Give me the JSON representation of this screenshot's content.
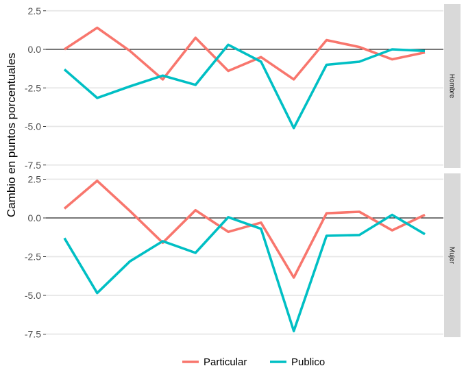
{
  "chart_data": {
    "type": "line",
    "ylabel": "Cambio en puntos porcentuales",
    "xlabel": "",
    "ylim": [
      -7.5,
      2.5
    ],
    "yticks": [
      2.5,
      0.0,
      -2.5,
      -5.0,
      -7.5
    ],
    "ytick_labels": [
      "2.5",
      "0.0",
      "-2.5",
      "-5.0",
      "-7.5"
    ],
    "x": [
      1,
      2,
      3,
      4,
      5,
      6,
      7,
      8,
      9,
      10,
      11,
      12
    ],
    "grid": true,
    "reference_line_y": 0,
    "legend": {
      "position": "bottom",
      "entries": [
        "Particular",
        "Publico"
      ]
    },
    "series_colors": {
      "Particular": "#F8766D",
      "Publico": "#00BFC4"
    },
    "panels": [
      {
        "strip_label": "Hombre",
        "series": [
          {
            "name": "Particular",
            "values": [
              0.0,
              1.4,
              -0.1,
              -1.95,
              0.75,
              -1.4,
              -0.5,
              -1.95,
              0.6,
              0.15,
              -0.65,
              -0.2
            ]
          },
          {
            "name": "Publico",
            "values": [
              -1.3,
              -3.15,
              -2.4,
              -1.7,
              -2.3,
              0.3,
              -0.8,
              -5.1,
              -1.0,
              -0.8,
              0.0,
              -0.1
            ]
          }
        ]
      },
      {
        "strip_label": "Mujer",
        "series": [
          {
            "name": "Particular",
            "values": [
              0.6,
              2.4,
              0.45,
              -1.6,
              0.5,
              -0.9,
              -0.3,
              -3.85,
              0.3,
              0.4,
              -0.8,
              0.2
            ]
          },
          {
            "name": "Publico",
            "values": [
              -1.3,
              -4.85,
              -2.8,
              -1.5,
              -2.25,
              0.05,
              -0.7,
              -7.3,
              -1.15,
              -1.1,
              0.2,
              -1.05
            ]
          }
        ]
      }
    ]
  }
}
